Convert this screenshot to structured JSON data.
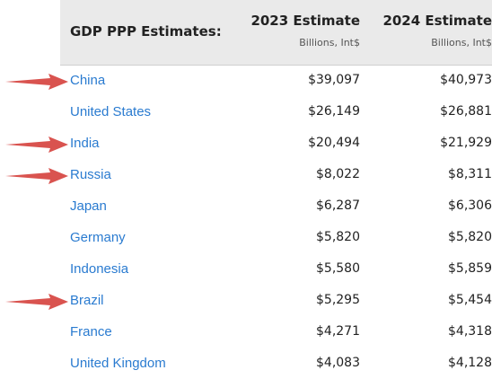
{
  "table": {
    "title": "GDP PPP Estimates:",
    "columns": [
      {
        "label": "2023 Estimate",
        "unit": "Billions, Int$"
      },
      {
        "label": "2024 Estimate",
        "unit": "Billions, Int$"
      }
    ],
    "rows": [
      {
        "country": "China",
        "v2023": "$39,097",
        "v2024": "$40,973",
        "arrow": true
      },
      {
        "country": "United States",
        "v2023": "$26,149",
        "v2024": "$26,881",
        "arrow": false
      },
      {
        "country": "India",
        "v2023": "$20,494",
        "v2024": "$21,929",
        "arrow": true
      },
      {
        "country": "Russia",
        "v2023": "$8,022",
        "v2024": "$8,311",
        "arrow": true
      },
      {
        "country": "Japan",
        "v2023": "$6,287",
        "v2024": "$6,306",
        "arrow": false
      },
      {
        "country": "Germany",
        "v2023": "$5,820",
        "v2024": "$5,820",
        "arrow": false
      },
      {
        "country": "Indonesia",
        "v2023": "$5,580",
        "v2024": "$5,859",
        "arrow": false
      },
      {
        "country": "Brazil",
        "v2023": "$5,295",
        "v2024": "$5,454",
        "arrow": true
      },
      {
        "country": "France",
        "v2023": "$4,271",
        "v2024": "$4,318",
        "arrow": false
      },
      {
        "country": "United Kingdom",
        "v2023": "$4,083",
        "v2024": "$4,128",
        "arrow": false
      }
    ]
  },
  "colors": {
    "link": "#2a7bd0",
    "arrow": "#d9534f",
    "header_bg": "#eaeaea"
  },
  "icons": {
    "annotation": "red-arrow-icon"
  }
}
